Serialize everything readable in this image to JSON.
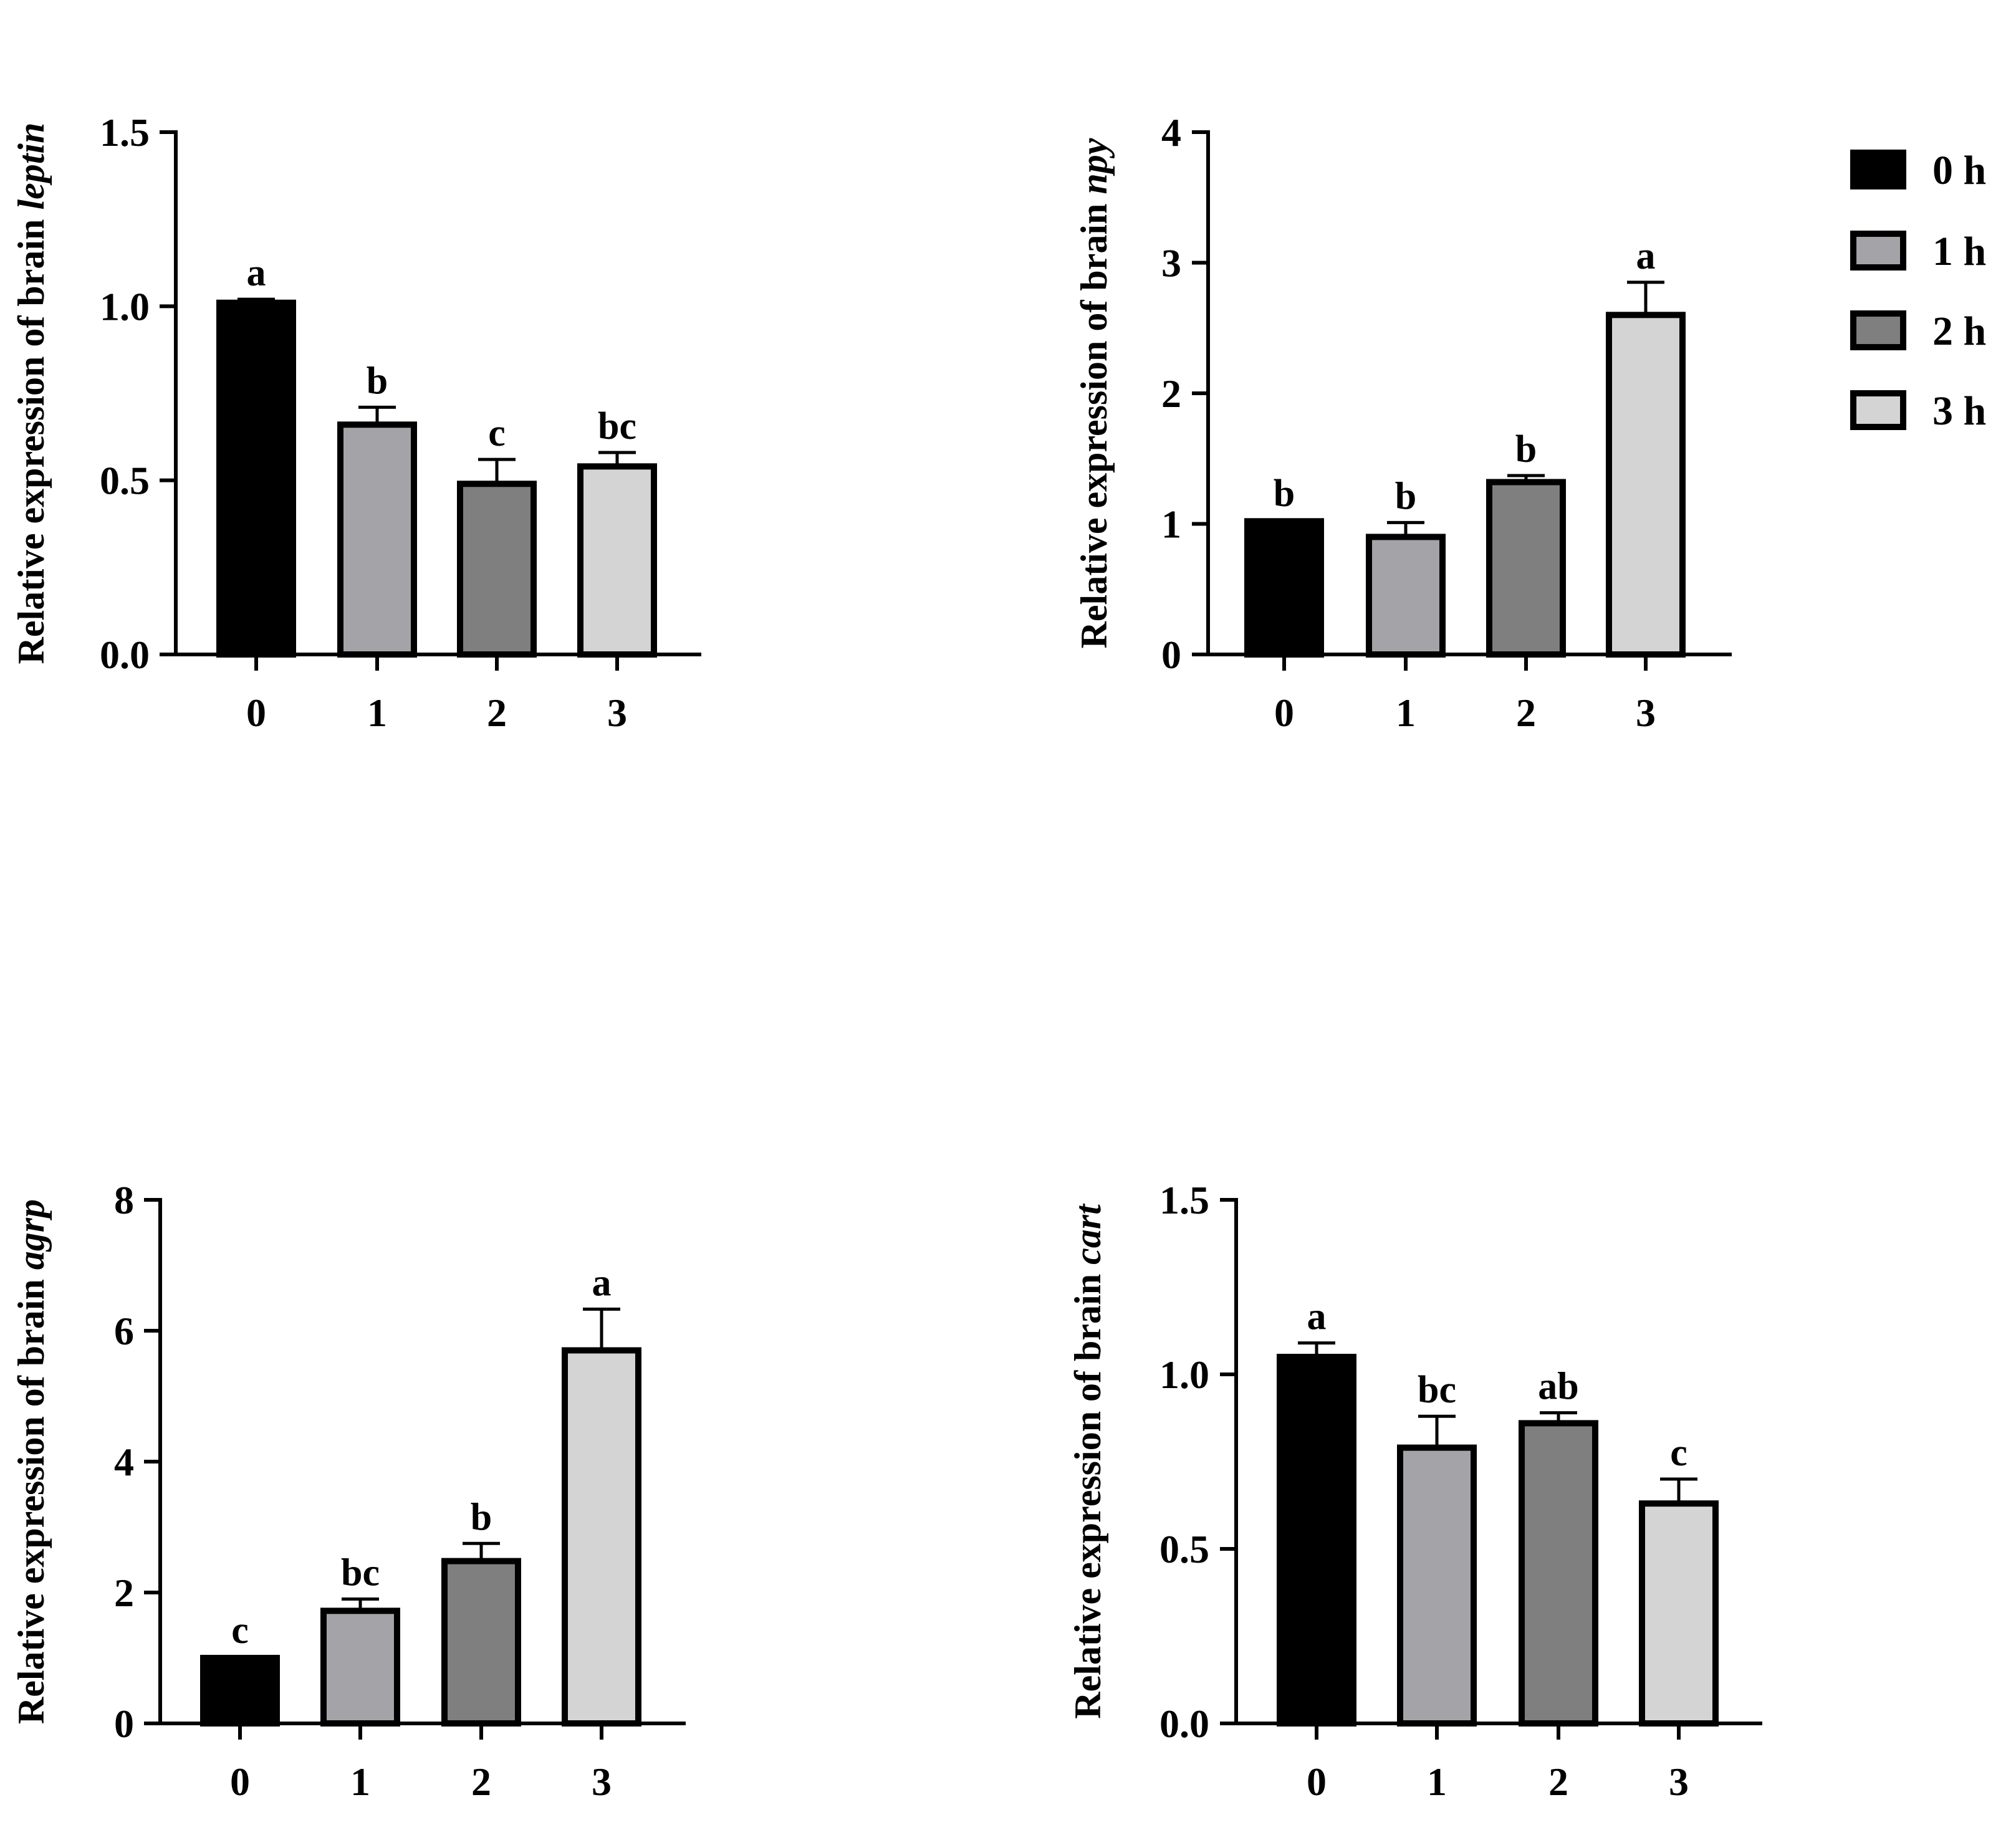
{
  "chart_data": [
    {
      "type": "bar",
      "ylabel_prefix": "Relative expression of brain ",
      "ylabel_gene": "leptin",
      "categories": [
        "0",
        "1",
        "2",
        "3"
      ],
      "values": [
        1.01,
        0.66,
        0.49,
        0.54
      ],
      "errors": [
        0.01,
        0.05,
        0.07,
        0.04
      ],
      "significance": [
        "a",
        "b",
        "c",
        "bc"
      ],
      "ylim": [
        0,
        1.5
      ],
      "yticks": [
        "0.0",
        "0.5",
        "1.0",
        "1.5"
      ],
      "ytick_values": [
        0,
        0.5,
        1.0,
        1.5
      ]
    },
    {
      "type": "bar",
      "ylabel_prefix": "Relative expression of brain ",
      "ylabel_gene": "npy",
      "categories": [
        "0",
        "1",
        "2",
        "3"
      ],
      "values": [
        1.02,
        0.9,
        1.32,
        2.6
      ],
      "errors": [
        0.01,
        0.11,
        0.05,
        0.25
      ],
      "significance": [
        "b",
        "b",
        "b",
        "a"
      ],
      "ylim": [
        0,
        4
      ],
      "yticks": [
        "0",
        "1",
        "2",
        "3",
        "4"
      ],
      "ytick_values": [
        0,
        1,
        2,
        3,
        4
      ]
    },
    {
      "type": "bar",
      "ylabel_prefix": "Relative expression of brain ",
      "ylabel_gene": "agrp",
      "categories": [
        "0",
        "1",
        "2",
        "3"
      ],
      "values": [
        1.0,
        1.72,
        2.48,
        5.7
      ],
      "errors": [
        0.02,
        0.18,
        0.27,
        0.63
      ],
      "significance": [
        "c",
        "bc",
        "b",
        "a"
      ],
      "ylim": [
        0,
        8
      ],
      "yticks": [
        "0",
        "2",
        "4",
        "6",
        "8"
      ],
      "ytick_values": [
        0,
        2,
        4,
        6,
        8
      ]
    },
    {
      "type": "bar",
      "ylabel_prefix": "Relative expression of brain ",
      "ylabel_gene": "cart",
      "categories": [
        "0",
        "1",
        "2",
        "3"
      ],
      "values": [
        1.05,
        0.79,
        0.86,
        0.63
      ],
      "errors": [
        0.04,
        0.09,
        0.03,
        0.07
      ],
      "significance": [
        "a",
        "bc",
        "ab",
        "c"
      ],
      "ylim": [
        0,
        1.5
      ],
      "yticks": [
        "0.0",
        "0.5",
        "1.0",
        "1.5"
      ],
      "ytick_values": [
        0,
        0.5,
        1.0,
        1.5
      ]
    }
  ],
  "legend": {
    "entries": [
      {
        "label": "0 h",
        "color": "#000000"
      },
      {
        "label": "1 h",
        "color": "#a4a4a8"
      },
      {
        "label": "2 h",
        "color": "#7f7f7f"
      },
      {
        "label": "3 h",
        "color": "#d4d4d4"
      }
    ]
  }
}
